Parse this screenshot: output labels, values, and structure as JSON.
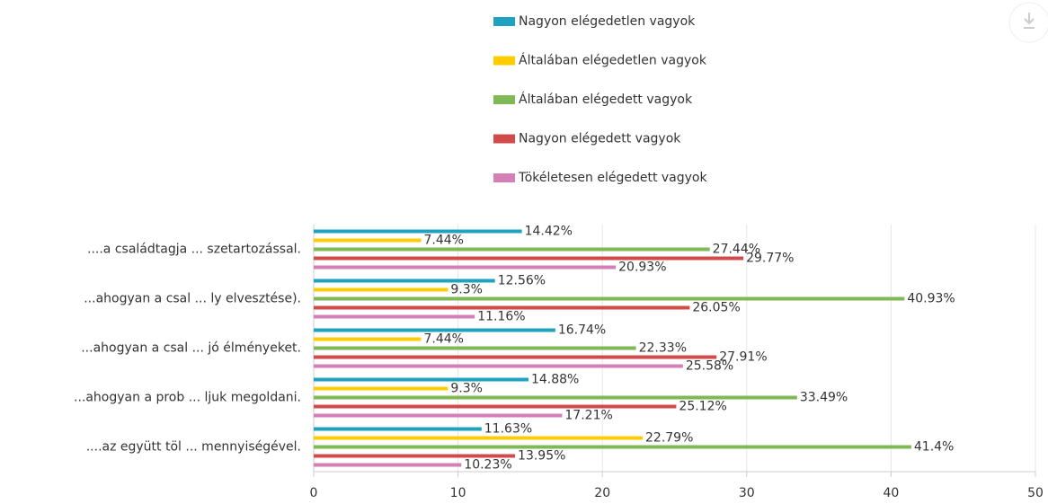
{
  "chart_data": {
    "type": "bar",
    "orientation": "horizontal",
    "categories": [
      "....a családtagja ... szetartozással.",
      "...ahogyan a csal ... ly elvesztése).",
      "...ahogyan a csal ... jó élményeket.",
      "...ahogyan a prob ... ljuk megoldani.",
      "....az együtt töl ... mennyiségével."
    ],
    "series": [
      {
        "name": "Nagyon elégedetlen vagyok",
        "color": "#1fa2bf",
        "values": [
          14.42,
          12.56,
          16.74,
          14.88,
          11.63
        ],
        "value_labels": [
          "14.42%",
          "12.56%",
          "16.74%",
          "14.88%",
          "11.63%"
        ]
      },
      {
        "name": "Általában elégedetlen vagyok",
        "color": "#ffcc00",
        "values": [
          7.44,
          9.3,
          7.44,
          9.3,
          22.79
        ],
        "value_labels": [
          "7.44%",
          "9.3%",
          "7.44%",
          "9.3%",
          "22.79%"
        ]
      },
      {
        "name": "Általában elégedett vagyok",
        "color": "#80b855",
        "values": [
          27.44,
          40.93,
          22.33,
          33.49,
          41.4
        ],
        "value_labels": [
          "27.44%",
          "40.93%",
          "22.33%",
          "33.49%",
          "41.4%"
        ]
      },
      {
        "name": "Nagyon elégedett vagyok",
        "color": "#d14b4b",
        "values": [
          29.77,
          26.05,
          27.91,
          25.12,
          13.95
        ],
        "value_labels": [
          "29.77%",
          "26.05%",
          "27.91%",
          "25.12%",
          "13.95%"
        ]
      },
      {
        "name": "Tökéletesen elégedett vagyok",
        "color": "#d47fb6",
        "values": [
          20.93,
          11.16,
          25.58,
          17.21,
          10.23
        ],
        "value_labels": [
          "20.93%",
          "11.16%",
          "25.58%",
          "17.21%",
          "10.23%"
        ]
      }
    ],
    "xlim": [
      0,
      50
    ],
    "xticks": [
      0,
      10,
      20,
      30,
      40,
      50
    ],
    "grid": true,
    "legend": "top"
  }
}
